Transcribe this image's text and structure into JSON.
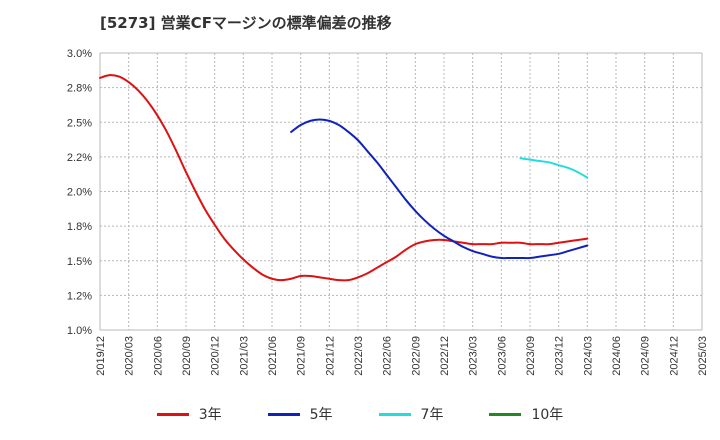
{
  "title": "[5273]  営業CFマージンの標準偏差の推移",
  "chart_data": {
    "type": "line",
    "title": "[5273]  営業CFマージンの標準偏差の推移",
    "xlabel": "",
    "ylabel": "",
    "ylim": [
      1.0,
      3.0
    ],
    "y_ticks": [
      "1.0%",
      "1.2%",
      "1.5%",
      "1.8%",
      "2.0%",
      "2.2%",
      "2.5%",
      "2.8%",
      "3.0%"
    ],
    "x_ticks": [
      "2019/12",
      "2020/03",
      "2020/06",
      "2020/09",
      "2020/12",
      "2021/03",
      "2021/06",
      "2021/09",
      "2021/12",
      "2022/03",
      "2022/06",
      "2022/09",
      "2022/12",
      "2023/03",
      "2023/06",
      "2023/09",
      "2023/12",
      "2024/03",
      "2024/06",
      "2024/09",
      "2024/12",
      "2025/03"
    ],
    "grid": true,
    "legend_position": "bottom",
    "series": [
      {
        "name": "3年",
        "color": "#dd1111",
        "points": [
          [
            "2019/12",
            2.82
          ],
          [
            "2020/01",
            2.84
          ],
          [
            "2020/02",
            2.83
          ],
          [
            "2020/03",
            2.79
          ],
          [
            "2020/04",
            2.73
          ],
          [
            "2020/05",
            2.65
          ],
          [
            "2020/06",
            2.55
          ],
          [
            "2020/07",
            2.43
          ],
          [
            "2020/08",
            2.29
          ],
          [
            "2020/09",
            2.14
          ],
          [
            "2020/10",
            2.0
          ],
          [
            "2020/11",
            1.87
          ],
          [
            "2020/12",
            1.76
          ],
          [
            "2021/01",
            1.66
          ],
          [
            "2021/02",
            1.58
          ],
          [
            "2021/03",
            1.51
          ],
          [
            "2021/04",
            1.45
          ],
          [
            "2021/05",
            1.4
          ],
          [
            "2021/06",
            1.37
          ],
          [
            "2021/07",
            1.36
          ],
          [
            "2021/08",
            1.37
          ],
          [
            "2021/09",
            1.39
          ],
          [
            "2021/10",
            1.39
          ],
          [
            "2021/11",
            1.38
          ],
          [
            "2021/12",
            1.37
          ],
          [
            "2022/01",
            1.36
          ],
          [
            "2022/02",
            1.36
          ],
          [
            "2022/03",
            1.38
          ],
          [
            "2022/04",
            1.41
          ],
          [
            "2022/05",
            1.45
          ],
          [
            "2022/06",
            1.49
          ],
          [
            "2022/07",
            1.53
          ],
          [
            "2022/08",
            1.58
          ],
          [
            "2022/09",
            1.62
          ],
          [
            "2022/10",
            1.64
          ],
          [
            "2022/11",
            1.65
          ],
          [
            "2022/12",
            1.65
          ],
          [
            "2023/01",
            1.64
          ],
          [
            "2023/02",
            1.63
          ],
          [
            "2023/03",
            1.62
          ],
          [
            "2023/04",
            1.62
          ],
          [
            "2023/05",
            1.62
          ],
          [
            "2023/06",
            1.63
          ],
          [
            "2023/07",
            1.63
          ],
          [
            "2023/08",
            1.63
          ],
          [
            "2023/09",
            1.62
          ],
          [
            "2023/10",
            1.62
          ],
          [
            "2023/11",
            1.62
          ],
          [
            "2023/12",
            1.63
          ],
          [
            "2024/01",
            1.64
          ],
          [
            "2024/02",
            1.65
          ],
          [
            "2024/03",
            1.66
          ]
        ]
      },
      {
        "name": "5年",
        "color": "#1122bb",
        "points": [
          [
            "2021/08",
            2.43
          ],
          [
            "2021/09",
            2.48
          ],
          [
            "2021/10",
            2.51
          ],
          [
            "2021/11",
            2.52
          ],
          [
            "2021/12",
            2.51
          ],
          [
            "2022/01",
            2.48
          ],
          [
            "2022/02",
            2.43
          ],
          [
            "2022/03",
            2.37
          ],
          [
            "2022/04",
            2.29
          ],
          [
            "2022/05",
            2.21
          ],
          [
            "2022/06",
            2.12
          ],
          [
            "2022/07",
            2.03
          ],
          [
            "2022/08",
            1.94
          ],
          [
            "2022/09",
            1.86
          ],
          [
            "2022/10",
            1.79
          ],
          [
            "2022/11",
            1.73
          ],
          [
            "2022/12",
            1.68
          ],
          [
            "2023/01",
            1.64
          ],
          [
            "2023/02",
            1.6
          ],
          [
            "2023/03",
            1.57
          ],
          [
            "2023/04",
            1.55
          ],
          [
            "2023/05",
            1.53
          ],
          [
            "2023/06",
            1.52
          ],
          [
            "2023/07",
            1.52
          ],
          [
            "2023/08",
            1.52
          ],
          [
            "2023/09",
            1.52
          ],
          [
            "2023/10",
            1.53
          ],
          [
            "2023/11",
            1.54
          ],
          [
            "2023/12",
            1.55
          ],
          [
            "2024/01",
            1.57
          ],
          [
            "2024/02",
            1.59
          ],
          [
            "2024/03",
            1.61
          ]
        ]
      },
      {
        "name": "7年",
        "color": "#22dddd",
        "points": [
          [
            "2023/08",
            2.24
          ],
          [
            "2023/09",
            2.23
          ],
          [
            "2023/10",
            2.22
          ],
          [
            "2023/11",
            2.21
          ],
          [
            "2023/12",
            2.19
          ],
          [
            "2024/01",
            2.17
          ],
          [
            "2024/02",
            2.14
          ],
          [
            "2024/03",
            2.1
          ]
        ]
      },
      {
        "name": "10年",
        "color": "#228822",
        "points": []
      }
    ]
  }
}
